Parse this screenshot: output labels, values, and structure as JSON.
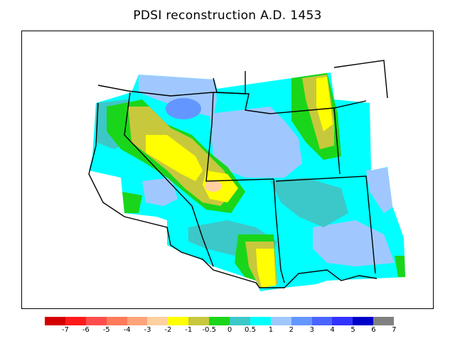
{
  "title": "PDSI reconstruction A.D. 1453",
  "colorbar": {
    "tick_labels": [
      "-7",
      "-6",
      "-5",
      "-4",
      "-3",
      "-2",
      "-1",
      "-0.5",
      "0",
      "0.5",
      "1",
      "2",
      "3",
      "4",
      "5",
      "6",
      "7"
    ],
    "colors": [
      "#d40000",
      "#ff1a1a",
      "#ff4d4d",
      "#ff7a5a",
      "#ffa37a",
      "#ffd0a0",
      "#ffff00",
      "#c8c83c",
      "#1ad61a",
      "#3cc8c8",
      "#00ffff",
      "#a0c8ff",
      "#6496ff",
      "#4b64ff",
      "#3232ff",
      "#0000c8",
      "#808080"
    ]
  },
  "palette": {
    "dry_moderate": "#ffff00",
    "dry_mild": "#c8c83c",
    "near_normal": "#1ad61a",
    "slightly_wet": "#3cc8c8",
    "wet": "#00ffff",
    "wetter": "#a0c8ff",
    "very_wet": "#6496ff",
    "extreme_dry_patch": "#ffd0a0"
  }
}
